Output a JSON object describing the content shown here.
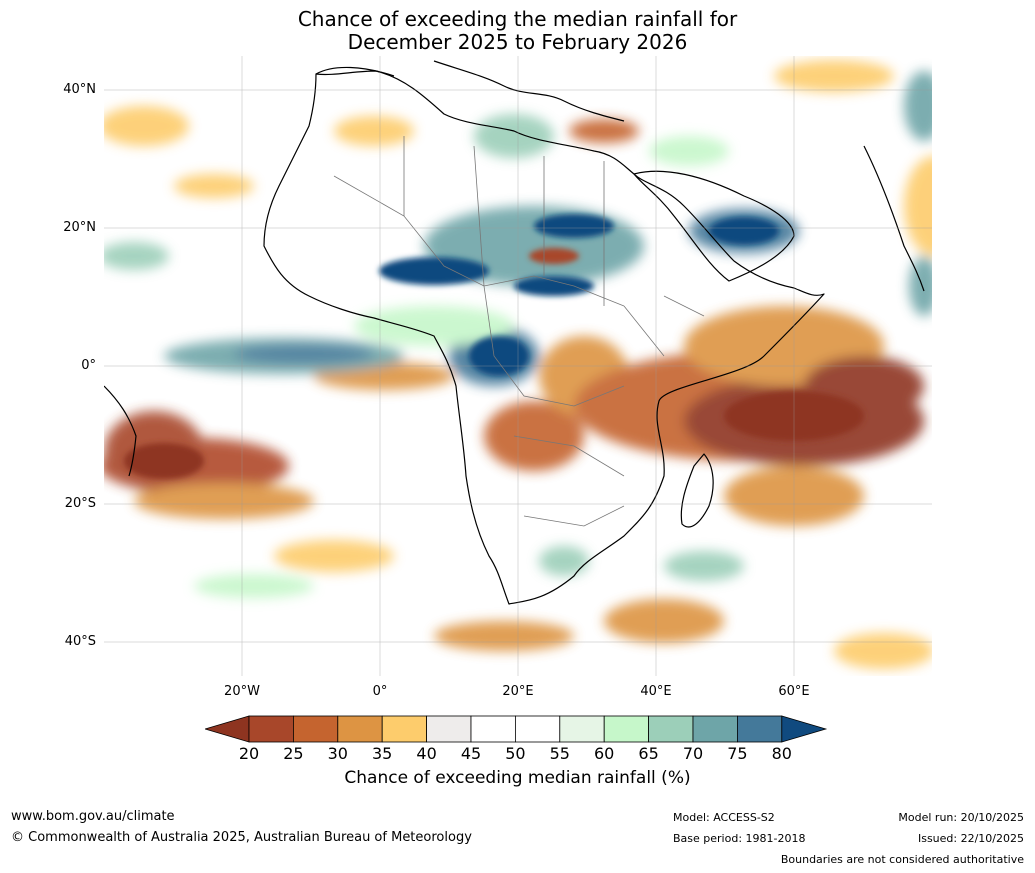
{
  "title": {
    "line1": "Chance of exceeding the median rainfall for",
    "line2": "December 2025 to February 2026"
  },
  "map": {
    "lat_labels": [
      "40°N",
      "20°N",
      "0°",
      "20°S",
      "40°S"
    ],
    "lon_labels": [
      "20°W",
      "0°",
      "20°E",
      "40°E",
      "60°E"
    ],
    "lat_range": [
      -45,
      45
    ],
    "lon_range": [
      -40,
      80
    ],
    "grid": true
  },
  "colorbar": {
    "ticks": [
      "20",
      "25",
      "30",
      "35",
      "40",
      "45",
      "50",
      "55",
      "60",
      "65",
      "70",
      "75",
      "80"
    ],
    "colors": [
      "#8e3420",
      "#a8472a",
      "#c5642f",
      "#dd9443",
      "#fdcc6c",
      "#eeeceb",
      "#ffffff",
      "#ffffff",
      "#e6f5e6",
      "#c6f7ca",
      "#9ccfb9",
      "#6ea5a8",
      "#44799a",
      "#104a7f"
    ],
    "under_color": "#8e3420",
    "over_color": "#104a7f",
    "label": "Chance of exceeding median rainfall (%)"
  },
  "footer": {
    "website": "www.bom.gov.au/climate",
    "copyright": "© Commonwealth of Australia 2025, Australian Bureau of Meteorology",
    "model": "Model: ACCESS-S2",
    "base_period": "Base period: 1981-2018",
    "model_run": "Model run: 20/10/2025",
    "issued": "Issued: 22/10/2025",
    "disclaimer": "Boundaries are not considered authoritative"
  }
}
